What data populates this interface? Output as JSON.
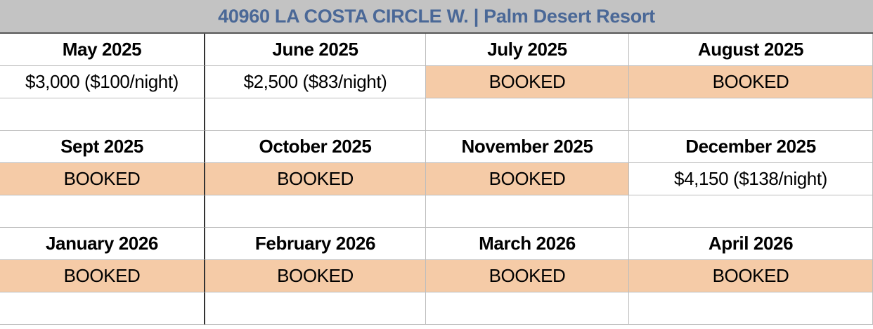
{
  "title": "40960 LA COSTA CIRCLE W. | Palm Desert Resort",
  "colors": {
    "booked": "#f5cba7",
    "title_bg": "#c3c3c3",
    "title_text": "#4a6897"
  },
  "blocks": [
    {
      "months": [
        "May 2025",
        "June 2025",
        "July 2025",
        "August 2025"
      ],
      "values": [
        "$3,000 ($100/night)",
        "$2,500 ($83/night)",
        "BOOKED",
        "BOOKED"
      ]
    },
    {
      "months": [
        "Sept 2025",
        "October 2025",
        "November 2025",
        "December 2025"
      ],
      "values": [
        "BOOKED",
        "BOOKED",
        "BOOKED",
        "$4,150 ($138/night)"
      ]
    },
    {
      "months": [
        "January 2026",
        "February 2026",
        "March 2026",
        "April 2026"
      ],
      "values": [
        "BOOKED",
        "BOOKED",
        "BOOKED",
        "BOOKED"
      ]
    }
  ]
}
